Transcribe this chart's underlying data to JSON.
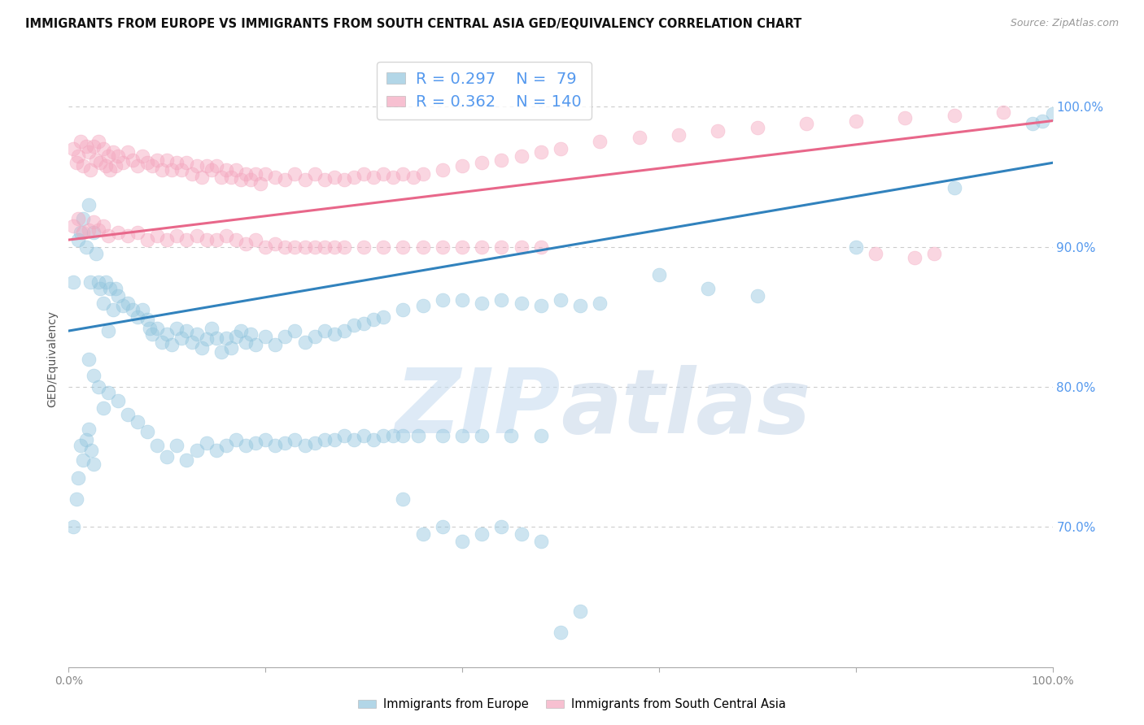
{
  "title": "IMMIGRANTS FROM EUROPE VS IMMIGRANTS FROM SOUTH CENTRAL ASIA GED/EQUIVALENCY CORRELATION CHART",
  "source": "Source: ZipAtlas.com",
  "ylabel": "GED/Equivalency",
  "ylabel_right_labels": [
    "70.0%",
    "80.0%",
    "90.0%",
    "100.0%"
  ],
  "ylabel_right_values": [
    0.7,
    0.8,
    0.9,
    1.0
  ],
  "xlim": [
    0.0,
    1.0
  ],
  "ylim": [
    0.6,
    1.04
  ],
  "legend_blue_r": "0.297",
  "legend_blue_n": "79",
  "legend_pink_r": "0.362",
  "legend_pink_n": "140",
  "blue_color": "#92c5de",
  "pink_color": "#f4a6be",
  "blue_line_color": "#3182bd",
  "pink_line_color": "#e8678a",
  "watermark_zip": "ZIP",
  "watermark_atlas": "atlas",
  "blue_line_x": [
    0.0,
    1.0
  ],
  "blue_line_y": [
    0.84,
    0.96
  ],
  "pink_line_x": [
    0.0,
    1.0
  ],
  "pink_line_y": [
    0.905,
    0.99
  ],
  "grid_color": "#cccccc",
  "background_color": "#ffffff",
  "title_fontsize": 10.5,
  "source_fontsize": 9,
  "axis_label_fontsize": 10,
  "legend_fontsize": 14,
  "right_label_color": "#5599ee",
  "bottom_label_color": "#888888",
  "blue_scatter_x": [
    0.005,
    0.01,
    0.012,
    0.015,
    0.018,
    0.02,
    0.022,
    0.025,
    0.028,
    0.03,
    0.032,
    0.035,
    0.038,
    0.04,
    0.042,
    0.045,
    0.048,
    0.05,
    0.055,
    0.06,
    0.065,
    0.07,
    0.075,
    0.08,
    0.082,
    0.085,
    0.09,
    0.095,
    0.1,
    0.105,
    0.11,
    0.115,
    0.12,
    0.125,
    0.13,
    0.135,
    0.14,
    0.145,
    0.15,
    0.155,
    0.16,
    0.165,
    0.17,
    0.175,
    0.18,
    0.185,
    0.19,
    0.2,
    0.21,
    0.22,
    0.23,
    0.24,
    0.25,
    0.26,
    0.27,
    0.28,
    0.29,
    0.3,
    0.31,
    0.32,
    0.34,
    0.36,
    0.38,
    0.4,
    0.42,
    0.44,
    0.46,
    0.48,
    0.5,
    0.52,
    0.54,
    0.6,
    0.65,
    0.7,
    0.8,
    0.9,
    0.98,
    0.99,
    1.0
  ],
  "blue_scatter_y": [
    0.875,
    0.905,
    0.91,
    0.92,
    0.9,
    0.93,
    0.875,
    0.91,
    0.895,
    0.875,
    0.87,
    0.86,
    0.875,
    0.84,
    0.87,
    0.855,
    0.87,
    0.865,
    0.858,
    0.86,
    0.855,
    0.85,
    0.855,
    0.848,
    0.842,
    0.838,
    0.842,
    0.832,
    0.838,
    0.83,
    0.842,
    0.835,
    0.84,
    0.832,
    0.838,
    0.828,
    0.834,
    0.842,
    0.835,
    0.825,
    0.835,
    0.828,
    0.836,
    0.84,
    0.832,
    0.838,
    0.83,
    0.836,
    0.83,
    0.836,
    0.84,
    0.832,
    0.836,
    0.84,
    0.838,
    0.84,
    0.844,
    0.845,
    0.848,
    0.85,
    0.855,
    0.858,
    0.862,
    0.862,
    0.86,
    0.862,
    0.86,
    0.858,
    0.862,
    0.858,
    0.86,
    0.88,
    0.87,
    0.865,
    0.9,
    0.942,
    0.988,
    0.99,
    0.995
  ],
  "blue_scatter_x2": [
    0.005,
    0.008,
    0.01,
    0.012,
    0.015,
    0.018,
    0.02,
    0.023,
    0.025,
    0.02,
    0.025,
    0.03,
    0.035,
    0.04,
    0.05,
    0.06,
    0.07,
    0.08,
    0.09,
    0.1,
    0.11,
    0.12,
    0.13,
    0.14,
    0.15,
    0.16,
    0.17,
    0.18,
    0.19,
    0.2,
    0.21,
    0.22,
    0.23,
    0.24,
    0.25,
    0.26,
    0.27,
    0.28,
    0.29,
    0.3,
    0.31,
    0.32,
    0.33,
    0.34,
    0.355,
    0.38,
    0.4,
    0.42,
    0.45,
    0.48
  ],
  "blue_scatter_y2": [
    0.7,
    0.72,
    0.735,
    0.758,
    0.748,
    0.762,
    0.77,
    0.755,
    0.745,
    0.82,
    0.808,
    0.8,
    0.785,
    0.796,
    0.79,
    0.78,
    0.775,
    0.768,
    0.758,
    0.75,
    0.758,
    0.748,
    0.755,
    0.76,
    0.755,
    0.758,
    0.762,
    0.758,
    0.76,
    0.762,
    0.758,
    0.76,
    0.762,
    0.758,
    0.76,
    0.762,
    0.762,
    0.765,
    0.762,
    0.765,
    0.762,
    0.765,
    0.765,
    0.765,
    0.765,
    0.765,
    0.765,
    0.765,
    0.765,
    0.765
  ],
  "blue_scatter_low_x": [
    0.34,
    0.36,
    0.38,
    0.4,
    0.42,
    0.44,
    0.46,
    0.48,
    0.5,
    0.52
  ],
  "blue_scatter_low_y": [
    0.72,
    0.695,
    0.7,
    0.69,
    0.695,
    0.7,
    0.695,
    0.69,
    0.625,
    0.64
  ],
  "pink_scatter_x": [
    0.005,
    0.008,
    0.01,
    0.012,
    0.015,
    0.018,
    0.02,
    0.022,
    0.025,
    0.028,
    0.03,
    0.032,
    0.035,
    0.038,
    0.04,
    0.042,
    0.045,
    0.048,
    0.05,
    0.055,
    0.06,
    0.065,
    0.07,
    0.075,
    0.08,
    0.085,
    0.09,
    0.095,
    0.1,
    0.105,
    0.11,
    0.115,
    0.12,
    0.125,
    0.13,
    0.135,
    0.14,
    0.145,
    0.15,
    0.155,
    0.16,
    0.165,
    0.17,
    0.175,
    0.18,
    0.185,
    0.19,
    0.195,
    0.2,
    0.21,
    0.22,
    0.23,
    0.24,
    0.25,
    0.26,
    0.27,
    0.28,
    0.29,
    0.3,
    0.31,
    0.32,
    0.33,
    0.34,
    0.35,
    0.36,
    0.38,
    0.4,
    0.42,
    0.44,
    0.46,
    0.48,
    0.5,
    0.54,
    0.58,
    0.62,
    0.66,
    0.7,
    0.75,
    0.8,
    0.85,
    0.9,
    0.95
  ],
  "pink_scatter_y": [
    0.97,
    0.96,
    0.965,
    0.975,
    0.958,
    0.972,
    0.968,
    0.955,
    0.972,
    0.962,
    0.975,
    0.96,
    0.97,
    0.958,
    0.965,
    0.955,
    0.968,
    0.958,
    0.965,
    0.96,
    0.968,
    0.962,
    0.958,
    0.965,
    0.96,
    0.958,
    0.962,
    0.955,
    0.962,
    0.955,
    0.96,
    0.955,
    0.96,
    0.952,
    0.958,
    0.95,
    0.958,
    0.955,
    0.958,
    0.95,
    0.955,
    0.95,
    0.955,
    0.948,
    0.952,
    0.948,
    0.952,
    0.945,
    0.952,
    0.95,
    0.948,
    0.952,
    0.948,
    0.952,
    0.948,
    0.95,
    0.948,
    0.95,
    0.952,
    0.95,
    0.952,
    0.95,
    0.952,
    0.95,
    0.952,
    0.955,
    0.958,
    0.96,
    0.962,
    0.965,
    0.968,
    0.97,
    0.975,
    0.978,
    0.98,
    0.983,
    0.985,
    0.988,
    0.99,
    0.992,
    0.994,
    0.996
  ],
  "pink_scatter_mid_x": [
    0.005,
    0.01,
    0.015,
    0.02,
    0.025,
    0.03,
    0.035,
    0.04,
    0.05,
    0.06,
    0.07,
    0.08,
    0.09,
    0.1,
    0.11,
    0.12,
    0.13,
    0.14,
    0.15,
    0.16,
    0.17,
    0.18,
    0.19,
    0.2,
    0.21,
    0.22,
    0.23,
    0.24,
    0.25,
    0.26,
    0.27,
    0.28,
    0.3,
    0.32,
    0.34,
    0.36,
    0.38,
    0.4,
    0.42,
    0.44,
    0.46,
    0.48,
    0.82,
    0.86,
    0.88
  ],
  "pink_scatter_mid_y": [
    0.915,
    0.92,
    0.91,
    0.912,
    0.918,
    0.912,
    0.915,
    0.908,
    0.91,
    0.908,
    0.91,
    0.905,
    0.908,
    0.905,
    0.908,
    0.905,
    0.908,
    0.905,
    0.905,
    0.908,
    0.905,
    0.902,
    0.905,
    0.9,
    0.902,
    0.9,
    0.9,
    0.9,
    0.9,
    0.9,
    0.9,
    0.9,
    0.9,
    0.9,
    0.9,
    0.9,
    0.9,
    0.9,
    0.9,
    0.9,
    0.9,
    0.9,
    0.895,
    0.892,
    0.895
  ]
}
